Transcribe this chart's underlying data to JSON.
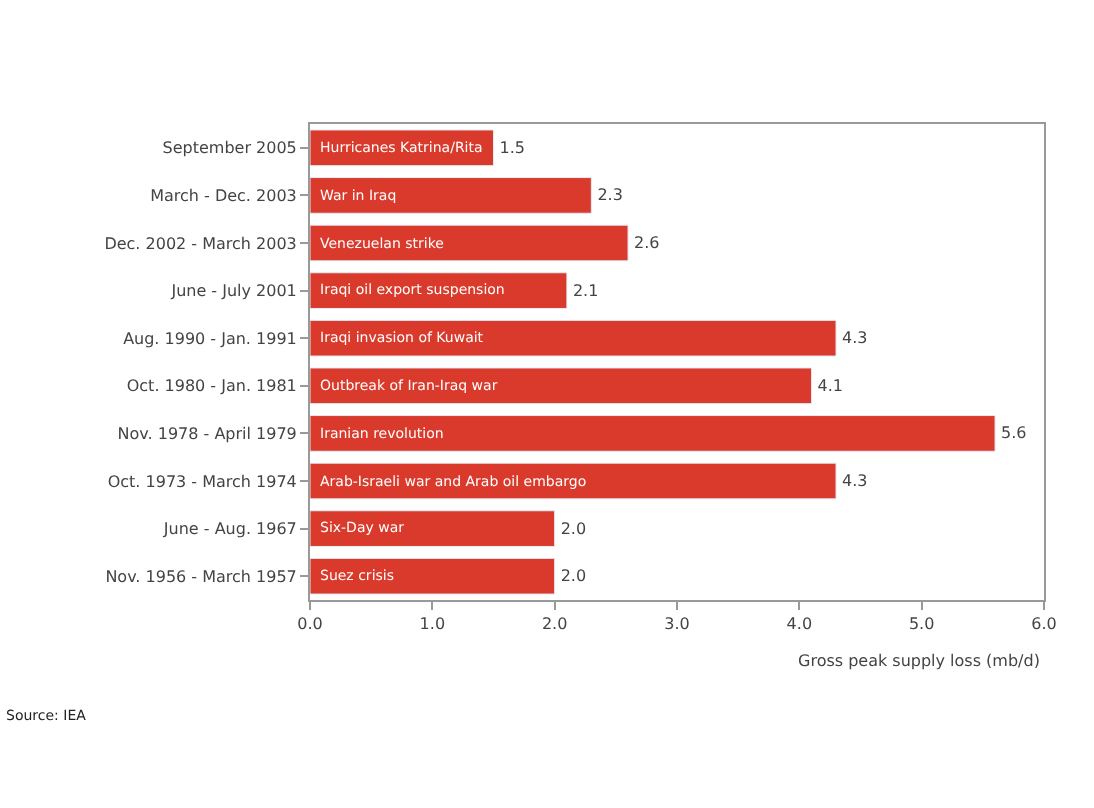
{
  "chart_data": {
    "type": "bar",
    "orientation": "horizontal",
    "categories": [
      "September 2005",
      "March - Dec. 2003",
      "Dec. 2002 - March 2003",
      "June - July 2001",
      "Aug. 1990 - Jan. 1991",
      "Oct. 1980 - Jan. 1981",
      "Nov. 1978 - April 1979",
      "Oct. 1973 - March 1974",
      "June - Aug. 1967",
      "Nov. 1956 - March 1957"
    ],
    "values": [
      1.5,
      2.3,
      2.6,
      2.1,
      4.3,
      4.1,
      5.6,
      4.3,
      2.0,
      2.0
    ],
    "value_labels": [
      "1.5",
      "2.3",
      "2.6",
      "2.1",
      "4.3",
      "4.1",
      "5.6",
      "4.3",
      "2.0",
      "2.0"
    ],
    "color": "#d93a2b",
    "xlim": [
      0,
      6
    ],
    "xticks": [
      {
        "value": 0,
        "label": "0.0"
      },
      {
        "value": 1,
        "label": "1.0"
      },
      {
        "value": 2,
        "label": "2.0"
      },
      {
        "value": 3,
        "label": "3.0"
      },
      {
        "value": 4,
        "label": "4.0"
      },
      {
        "value": 5,
        "label": "5.0"
      },
      {
        "value": 6,
        "label": "6.0"
      }
    ],
    "xlabel": "Gross peak supply loss (mb/d)",
    "legend": false,
    "annotations": [
      {
        "text": "Hurricanes Katrina/Rita",
        "y": "September 2005"
      },
      {
        "text": "War in Iraq",
        "y": "March - Dec. 2003"
      },
      {
        "text": "Venezuelan strike",
        "y": "Dec. 2002 - March 2003"
      },
      {
        "text": "Iraqi oil export suspension",
        "y": "June - July 2001"
      },
      {
        "text": "Iraqi invasion of Kuwait",
        "y": "Aug. 1990 - Jan. 1991"
      },
      {
        "text": "Outbreak of Iran-Iraq war",
        "y": "Oct. 1980 - Jan. 1981"
      },
      {
        "text": "Iranian revolution",
        "y": "Nov. 1978 - April 1979"
      },
      {
        "text": "Arab-Israeli war and Arab oil embargo",
        "y": "Oct. 1973 - March 1974"
      },
      {
        "text": "Six-Day war",
        "y": "June - Aug. 1967"
      },
      {
        "text": "Suez crisis",
        "y": "Nov. 1956 - March 1957"
      },
      "Source: IEA"
    ]
  }
}
